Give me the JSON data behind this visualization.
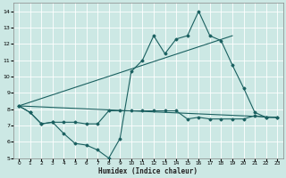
{
  "xlabel": "Humidex (Indice chaleur)",
  "xlim": [
    -0.5,
    23.5
  ],
  "ylim": [
    5,
    14.5
  ],
  "yticks": [
    5,
    6,
    7,
    8,
    9,
    10,
    11,
    12,
    13,
    14
  ],
  "xticks": [
    0,
    1,
    2,
    3,
    4,
    5,
    6,
    7,
    8,
    9,
    10,
    11,
    12,
    13,
    14,
    15,
    16,
    17,
    18,
    19,
    20,
    21,
    22,
    23
  ],
  "bg_color": "#cce8e4",
  "grid_color": "#b0d8d4",
  "line_color": "#1a6060",
  "series_zigzag": {
    "x": [
      0,
      1,
      2,
      3,
      4,
      5,
      6,
      7,
      8,
      9,
      10,
      11,
      12,
      13,
      14,
      15,
      16,
      17,
      18,
      19,
      20,
      21,
      22,
      23
    ],
    "y": [
      8.2,
      7.8,
      7.1,
      7.2,
      6.5,
      5.9,
      5.8,
      5.5,
      5.0,
      6.2,
      10.3,
      11.0,
      12.5,
      11.4,
      12.3,
      12.5,
      14.0,
      12.5,
      12.2,
      10.7,
      9.3,
      7.8,
      7.5,
      7.5
    ]
  },
  "series_flat": {
    "x": [
      0,
      1,
      2,
      3,
      4,
      5,
      6,
      7,
      8,
      9,
      10,
      11,
      12,
      13,
      14,
      15,
      16,
      17,
      18,
      19,
      20,
      21,
      22,
      23
    ],
    "y": [
      8.2,
      7.8,
      7.1,
      7.2,
      7.2,
      7.2,
      7.1,
      7.1,
      7.9,
      7.9,
      7.9,
      7.9,
      7.9,
      7.9,
      7.9,
      7.4,
      7.5,
      7.4,
      7.4,
      7.4,
      7.4,
      7.6,
      7.5,
      7.5
    ]
  },
  "line_low": {
    "x": [
      0,
      23
    ],
    "y": [
      8.2,
      7.5
    ]
  },
  "line_high": {
    "x": [
      0,
      19
    ],
    "y": [
      8.2,
      12.5
    ]
  }
}
